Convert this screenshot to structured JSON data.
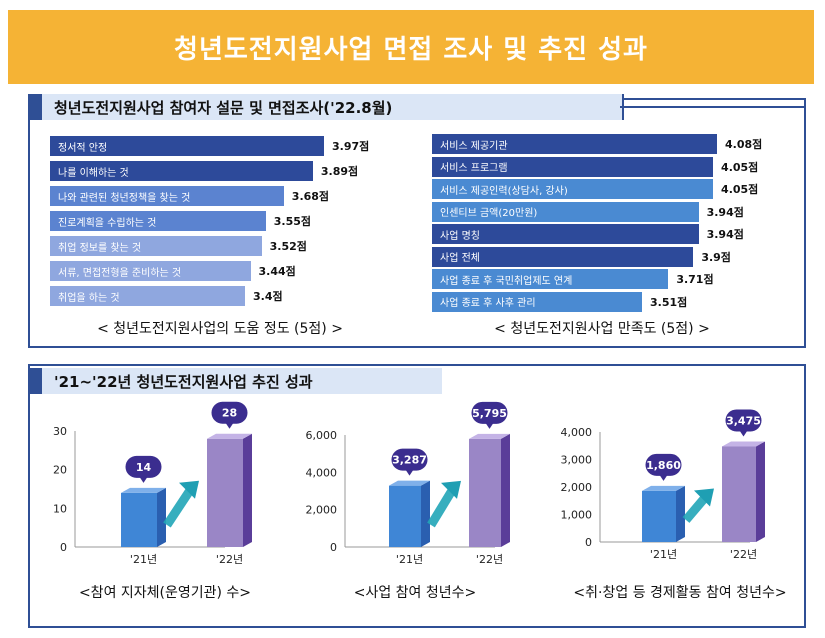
{
  "banner": {
    "title": "청년도전지원사업 면접 조사 및 추진 성과"
  },
  "top_section": {
    "title": "청년도전지원사업 참여자 설문 및 면접조사('22.8월)"
  },
  "bottom_section": {
    "title": "'21~'22년 청년도전지원사업 추진 성과"
  },
  "chart_data": [
    {
      "type": "bar",
      "orientation": "horizontal",
      "title": "< 청년도전지원사업의 도움 정도 (5점) >",
      "categories": [
        "정서적 안정",
        "나를 이해하는 것",
        "나와 관련된 청년정책을 찾는 것",
        "진로계획을 수립하는 것",
        "취업 정보를 찾는 것",
        "서류, 면접전형을 준비하는 것",
        "취업을 하는 것"
      ],
      "values": [
        3.97,
        3.89,
        3.68,
        3.55,
        3.52,
        3.44,
        3.4
      ],
      "value_labels": [
        "3.97점",
        "3.89점",
        "3.68점",
        "3.55점",
        "3.52점",
        "3.44점",
        "3.4점"
      ],
      "colors": [
        "#2d4a9a",
        "#2d4a9a",
        "#5b83d0",
        "#5b83d0",
        "#8fa7df",
        "#8fa7df",
        "#8fa7df"
      ]
    },
    {
      "type": "bar",
      "orientation": "horizontal",
      "title": "< 청년도전지원사업 만족도 (5점) >",
      "categories": [
        "서비스 제공기관",
        "서비스 프로그램",
        "서비스 제공인력(상담사, 강사)",
        "인센티브 금액(20만원)",
        "사업 명칭",
        "사업 전체",
        "사업 종료 후 국민취업제도 연계",
        "사업 종료 후 사후 관리"
      ],
      "values": [
        4.08,
        4.05,
        4.05,
        3.94,
        3.94,
        3.9,
        3.71,
        3.51
      ],
      "value_labels": [
        "4.08점",
        "4.05점",
        "4.05점",
        "3.94점",
        "3.94점",
        "3.9점",
        "3.71점",
        "3.51점"
      ],
      "colors": [
        "#2d4a9a",
        "#2d4a9a",
        "#4a8ad2",
        "#4a8ad2",
        "#2d4a9a",
        "#2d4a9a",
        "#4a8ad2",
        "#4a8ad2"
      ]
    },
    {
      "type": "bar",
      "title": "<참여 지자체(운영기관) 수>",
      "categories": [
        "'21년",
        "'22년"
      ],
      "values": [
        14,
        28
      ],
      "value_labels": [
        "14",
        "28"
      ],
      "ylim": [
        0,
        30
      ],
      "yticks": [
        0,
        10,
        20,
        30
      ],
      "ytick_labels": [
        "0",
        "10",
        "20",
        "30"
      ]
    },
    {
      "type": "bar",
      "title": "<사업 참여 청년수>",
      "categories": [
        "'21년",
        "'22년"
      ],
      "values": [
        3287,
        5795
      ],
      "value_labels": [
        "3,287",
        "5,795"
      ],
      "ylim": [
        0,
        6000
      ],
      "yticks": [
        0,
        2000,
        4000,
        6000
      ],
      "ytick_labels": [
        "0",
        "2,000",
        "4,000",
        "6,000"
      ]
    },
    {
      "type": "bar",
      "title": "<취·창업 등 경제활동 참여 청년수>",
      "categories": [
        "'21년",
        "'22년"
      ],
      "values": [
        1860,
        3475
      ],
      "value_labels": [
        "1,860",
        "3,475"
      ],
      "ylim": [
        0,
        4000
      ],
      "yticks": [
        0,
        1000,
        2000,
        3000,
        4000
      ],
      "ytick_labels": [
        "0",
        "1,000",
        "2,000",
        "3,000",
        "4,000"
      ]
    }
  ]
}
